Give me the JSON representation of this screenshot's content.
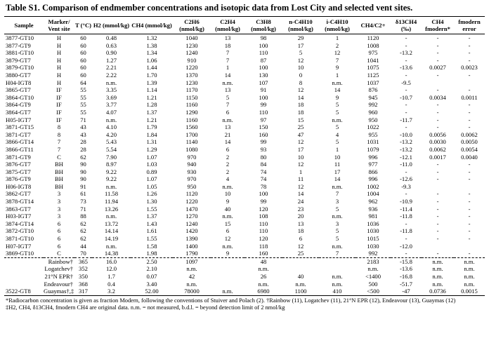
{
  "title": "Table S1.  Comparison of endmember concentrations and isotopic data from Lost City and selected vent sites.",
  "columns": [
    "Sample",
    "Marker/ Vent site",
    "T (°C)",
    "H2 (mmol/kg)",
    "CH4 (mmol/kg)",
    "C2H6 (nmol/kg)",
    "C2H4 (nmol/kg)",
    "C3H8 (nmol/kg)",
    "n-C4H10 (nmol/kg)",
    "i-C4H10 (nmol/kg)",
    "CH4/C2+",
    "δ13CH4 (‰)",
    "CH4 fmodern*",
    "fmodern error"
  ],
  "rows": [
    [
      "3877-GT10",
      "H",
      "60",
      "0.48",
      "1.32",
      "1040",
      "13",
      "98",
      "29",
      "1",
      "1120",
      "-",
      "-",
      "-"
    ],
    [
      "3877-GT9",
      "H",
      "60",
      "0.63",
      "1.38",
      "1230",
      "18",
      "100",
      "17",
      "2",
      "1008",
      "-",
      "-",
      "-"
    ],
    [
      "3881-GT10",
      "H",
      "60",
      "0.90",
      "1.34",
      "1240",
      "7",
      "110",
      "5",
      "12",
      "975",
      "-13.2",
      "-",
      "-"
    ],
    [
      "3879-GT7",
      "H",
      "60",
      "1.27",
      "1.06",
      "910",
      "7",
      "87",
      "12",
      "7",
      "1041",
      "-",
      "-",
      "-"
    ],
    [
      "3879-GT10",
      "H",
      "60",
      "2.21",
      "1.44",
      "1220",
      "1",
      "100",
      "10",
      "9",
      "1075",
      "-13.6",
      "0.0027",
      "0.0023"
    ],
    [
      "3880-GT7",
      "H",
      "60",
      "2.22",
      "1.70",
      "1370",
      "14",
      "130",
      "0",
      "1",
      "1125",
      "-",
      "-",
      "-"
    ],
    [
      "H04-IGT8",
      "H",
      "64",
      "n.m.",
      "1.39",
      "1230",
      "n.m.",
      "107",
      "8",
      "n.m.",
      "1037",
      "-9.5",
      "",
      ""
    ],
    [
      "3865-GT7",
      "IF",
      "55",
      "3.35",
      "1.14",
      "1170",
      "13",
      "91",
      "12",
      "14",
      "876",
      "-",
      "-",
      "-"
    ],
    [
      "3864-GT10",
      "IF",
      "55",
      "3.69",
      "1.21",
      "1150",
      "5",
      "100",
      "14",
      "9",
      "945",
      "-10.7",
      "0.0034",
      "0.0011"
    ],
    [
      "3864-GT9",
      "IF",
      "55",
      "3.77",
      "1.28",
      "1160",
      "7",
      "99",
      "18",
      "5",
      "992",
      "-",
      "-",
      "-"
    ],
    [
      "3864-GT7",
      "IF",
      "55",
      "4.07",
      "1.37",
      "1290",
      "6",
      "110",
      "18",
      "5",
      "960",
      "-",
      "-",
      "-"
    ],
    [
      "H05-IGT7",
      "IF",
      "71",
      "n.m.",
      "1.21",
      "1160",
      "n.m.",
      "97",
      "15",
      "n.m.",
      "950",
      "-11.7",
      "-",
      "-"
    ],
    [
      "3871-GT15",
      "8",
      "43",
      "4.10",
      "1.79",
      "1560",
      "13",
      "150",
      "25",
      "5",
      "1022",
      "-",
      "-",
      "-"
    ],
    [
      "3871-GT7",
      "8",
      "43",
      "4.20",
      "1.84",
      "1700",
      "21",
      "160",
      "47",
      "4",
      "955",
      "-10.0",
      "0.0056",
      "0.0062"
    ],
    [
      "3866-GT14",
      "7",
      "28",
      "5.43",
      "1.31",
      "1140",
      "14",
      "99",
      "12",
      "5",
      "1031",
      "-13.2",
      "0.0030",
      "0.0050"
    ],
    [
      "3866-GT11",
      "7",
      "28",
      "5.54",
      "1.29",
      "1080",
      "6",
      "93",
      "17",
      "1",
      "1079",
      "-13.2",
      "0.0062",
      "0.0054"
    ],
    [
      "3871-GT9",
      "C",
      "62",
      "7.90",
      "1.07",
      "970",
      "2",
      "80",
      "10",
      "10",
      "996",
      "-12.1",
      "0.0017",
      "0.0040"
    ],
    [
      "3876-GT7",
      "BH",
      "90",
      "8.97",
      "1.03",
      "940",
      "2",
      "84",
      "12",
      "11",
      "977",
      "-11.0",
      "-",
      "-"
    ],
    [
      "3875-GT7",
      "BH",
      "90",
      "9.22",
      "0.89",
      "930",
      "2",
      "74",
      "1",
      "17",
      "866",
      "-",
      "-",
      "-"
    ],
    [
      "3876-GT9",
      "BH",
      "90",
      "9.22",
      "1.07",
      "970",
      "4",
      "74",
      "11",
      "14",
      "996",
      "-12.6",
      "-",
      "-"
    ],
    [
      "H06-IGT8",
      "BH",
      "91",
      "n.m.",
      "1.05",
      "950",
      "n.m.",
      "78",
      "12",
      "n.m.",
      "1002",
      "-9.3",
      "",
      ""
    ],
    [
      "3862-GT7",
      "3",
      "61",
      "11.58",
      "1.26",
      "1120",
      "10",
      "100",
      "14",
      "7",
      "1004",
      "-",
      "-",
      "-"
    ],
    [
      "3878-GT14",
      "3",
      "73",
      "11.94",
      "1.30",
      "1220",
      "9",
      "99",
      "24",
      "3",
      "962",
      "-10.9",
      "-",
      "-"
    ],
    [
      "3863-GT7",
      "3",
      "71",
      "13.26",
      "1.55",
      "1470",
      "40",
      "120",
      "23",
      "5",
      "936",
      "-11.4",
      "-",
      "-"
    ],
    [
      "H03-IGT7",
      "3",
      "88",
      "n.m.",
      "1.37",
      "1270",
      "n.m.",
      "108",
      "20",
      "n.m.",
      "981",
      "-11.8",
      "-",
      "-"
    ],
    [
      "3874-GT14",
      "6",
      "62",
      "13.72",
      "1.43",
      "1240",
      "15",
      "110",
      "13",
      "3",
      "1036",
      "-",
      "-",
      "-"
    ],
    [
      "3872-GT10",
      "6",
      "62",
      "14.14",
      "1.61",
      "1420",
      "6",
      "110",
      "18",
      "5",
      "1030",
      "-11.8",
      "-",
      "-"
    ],
    [
      "3871-GT10",
      "6",
      "62",
      "14.19",
      "1.55",
      "1390",
      "12",
      "120",
      "6",
      "5",
      "1015",
      "-",
      "-",
      "-"
    ],
    [
      "H07-IGT7",
      "6",
      "44",
      "n.m.",
      "1.58",
      "1400",
      "n.m.",
      "118",
      "12",
      "n.m.",
      "1030",
      "-12.0",
      "",
      ""
    ],
    [
      "3869-GT10",
      "C",
      "70",
      "14.38",
      "1.98",
      "1790",
      "9",
      "160",
      "25",
      "7",
      "992",
      "-",
      "-",
      "-"
    ]
  ],
  "vent_rows": [
    [
      "",
      "Rainbow†",
      "365",
      "16.0",
      "2.50",
      "1097",
      "",
      "48",
      "",
      "",
      "2183",
      "-15.8",
      "n.m.",
      "n.m."
    ],
    [
      "",
      "Logatchev†",
      "352",
      "12.0",
      "2.10",
      "n.m.",
      "",
      "n.m.",
      "",
      "",
      "n.m.",
      "-13.6",
      "n.m.",
      "n.m."
    ],
    [
      "",
      "21°N EPR†",
      "350",
      "1.7",
      "0.07",
      "42",
      "",
      "26",
      "40",
      "n.m.",
      "<1400",
      "-16.8",
      "n.m.",
      "n.m."
    ],
    [
      "",
      "Endeavour†",
      "368",
      "0.4",
      "3.40",
      "n.m.",
      "",
      "n.m.",
      "n.m.",
      "n.m.",
      "500",
      "-51.7",
      "n.m.",
      "n.m."
    ],
    [
      "3522-GT8",
      "Guaymas†,‡",
      "317",
      "3.2",
      "52.00",
      "78000",
      "n.m.",
      "6980",
      "1100",
      "410",
      "<500",
      "-47",
      "0.0736",
      "0.0015"
    ]
  ],
  "notes": [
    "*Radiocarbon concentration is given as fraction Modern, following the conventions of Stuiver and Polach (2).  †Rainbow (11), Logatchev (11), 21°N EPR (12), Endeavour (13), Guaymas (12)",
    "‡H2, CH4, δ13CH4, fmodern CH4 are original data.   n.m. = not measured, b.d.l. = beyond detection limit of 2 nmol/kg"
  ]
}
